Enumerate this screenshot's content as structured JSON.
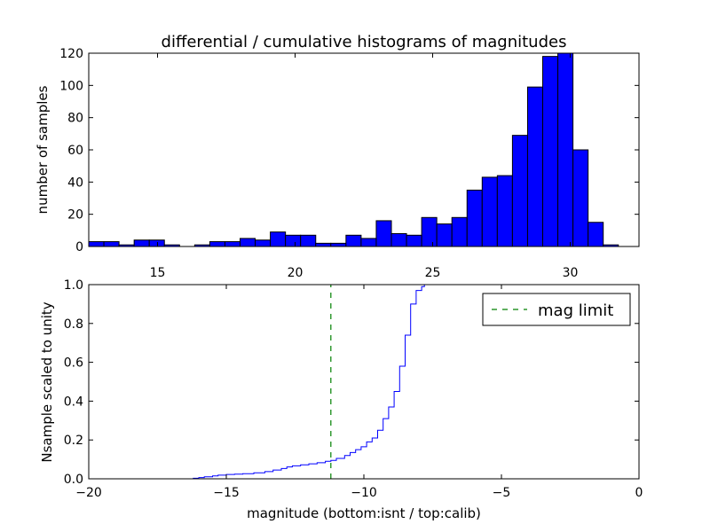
{
  "chart_data": [
    {
      "type": "bar",
      "title": "differential / cumulative histograms of magnitudes",
      "xlabel": "",
      "ylabel": "number of samples",
      "xlim": [
        12.5,
        32.5
      ],
      "ylim": [
        0,
        120
      ],
      "xticks": [
        15,
        20,
        25,
        30
      ],
      "xtick_position": "top-of-lower-panel",
      "yticks": [
        0,
        20,
        40,
        60,
        80,
        100,
        120
      ],
      "color": "#0000ff",
      "edgecolor": "#000000",
      "bin_width": 0.55,
      "bins": [
        {
          "x0": 12.5,
          "value": 3
        },
        {
          "x0": 13.05,
          "value": 3
        },
        {
          "x0": 13.6,
          "value": 1
        },
        {
          "x0": 14.15,
          "value": 4
        },
        {
          "x0": 14.7,
          "value": 4
        },
        {
          "x0": 15.25,
          "value": 1
        },
        {
          "x0": 15.8,
          "value": 0
        },
        {
          "x0": 16.35,
          "value": 1
        },
        {
          "x0": 16.9,
          "value": 3
        },
        {
          "x0": 17.45,
          "value": 3
        },
        {
          "x0": 18.0,
          "value": 5
        },
        {
          "x0": 18.55,
          "value": 4
        },
        {
          "x0": 19.1,
          "value": 9
        },
        {
          "x0": 19.65,
          "value": 7
        },
        {
          "x0": 20.2,
          "value": 7
        },
        {
          "x0": 20.75,
          "value": 2
        },
        {
          "x0": 21.3,
          "value": 2
        },
        {
          "x0": 21.85,
          "value": 7
        },
        {
          "x0": 22.4,
          "value": 5
        },
        {
          "x0": 22.95,
          "value": 16
        },
        {
          "x0": 23.5,
          "value": 8
        },
        {
          "x0": 24.05,
          "value": 7
        },
        {
          "x0": 24.6,
          "value": 18
        },
        {
          "x0": 25.15,
          "value": 14
        },
        {
          "x0": 25.7,
          "value": 18
        },
        {
          "x0": 26.25,
          "value": 35
        },
        {
          "x0": 26.8,
          "value": 43
        },
        {
          "x0": 27.35,
          "value": 44
        },
        {
          "x0": 27.9,
          "value": 69
        },
        {
          "x0": 28.45,
          "value": 99
        },
        {
          "x0": 29.0,
          "value": 118
        },
        {
          "x0": 29.55,
          "value": 120
        },
        {
          "x0": 30.1,
          "value": 60
        },
        {
          "x0": 30.65,
          "value": 15
        },
        {
          "x0": 31.2,
          "value": 1
        }
      ]
    },
    {
      "type": "line",
      "drawstyle": "steps",
      "title": "",
      "xlabel": "magnitude (bottom:isnt / top:calib)",
      "ylabel": "Nsample scaled to unity",
      "xlim": [
        -20,
        0
      ],
      "ylim": [
        0,
        1.0
      ],
      "xticks": [
        -20,
        -15,
        -10,
        -5,
        0
      ],
      "yticks": [
        0.0,
        0.2,
        0.4,
        0.6,
        0.8,
        1.0
      ],
      "series": [
        {
          "color": "#0000ff",
          "x": [
            -20,
            -16.2,
            -16.0,
            -15.8,
            -15.5,
            -15.3,
            -15.0,
            -14.7,
            -14.4,
            -14.0,
            -13.6,
            -13.3,
            -13.0,
            -12.8,
            -12.6,
            -12.3,
            -12.0,
            -11.7,
            -11.4,
            -11.2,
            -11.0,
            -10.7,
            -10.5,
            -10.3,
            -10.1,
            -9.9,
            -9.7,
            -9.5,
            -9.3,
            -9.1,
            -8.9,
            -8.7,
            -8.5,
            -8.3,
            -8.1,
            -7.9,
            -7.8,
            -0.05
          ],
          "y": [
            0.0,
            0.003,
            0.006,
            0.01,
            0.015,
            0.019,
            0.022,
            0.024,
            0.026,
            0.031,
            0.037,
            0.045,
            0.053,
            0.061,
            0.067,
            0.072,
            0.077,
            0.083,
            0.09,
            0.095,
            0.105,
            0.12,
            0.135,
            0.15,
            0.165,
            0.19,
            0.21,
            0.25,
            0.31,
            0.37,
            0.45,
            0.58,
            0.74,
            0.9,
            0.97,
            0.99,
            1.0,
            1.0
          ]
        },
        {
          "name": "mag limit",
          "style": "dashed",
          "color": "#008000",
          "x": [
            -11.2,
            -11.2
          ],
          "y": [
            0.0,
            1.0
          ]
        }
      ],
      "legend": {
        "position": "top-right",
        "entries": [
          "mag limit"
        ]
      }
    }
  ]
}
